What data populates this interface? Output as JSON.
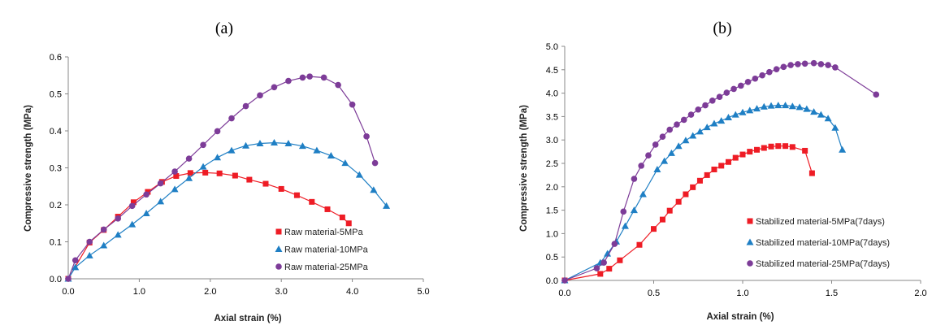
{
  "chart_data": [
    {
      "type": "line",
      "title": "(a)",
      "xlabel": "Axial strain (%)",
      "ylabel": "Compressive strength (MPa)",
      "xlim": [
        0,
        5
      ],
      "ylim": [
        0,
        0.6
      ],
      "xticks": [
        "0.0",
        "1.0",
        "2.0",
        "3.0",
        "4.0",
        "5.0"
      ],
      "yticks": [
        "0.0",
        "0.1",
        "0.2",
        "0.3",
        "0.4",
        "0.5",
        "0.6"
      ],
      "grid": false,
      "legend_position": "bottom-right",
      "series": [
        {
          "name": "Raw material-5MPa",
          "color": "#ee1c25",
          "marker": "square",
          "x": [
            0,
            0.3,
            0.5,
            0.7,
            0.92,
            1.12,
            1.32,
            1.52,
            1.72,
            1.93,
            2.13,
            2.35,
            2.55,
            2.78,
            3.0,
            3.22,
            3.43,
            3.65,
            3.86,
            3.95
          ],
          "y": [
            0,
            0.098,
            0.132,
            0.168,
            0.207,
            0.235,
            0.262,
            0.278,
            0.286,
            0.287,
            0.285,
            0.279,
            0.268,
            0.257,
            0.243,
            0.226,
            0.208,
            0.188,
            0.166,
            0.15
          ]
        },
        {
          "name": "Raw material-10MPa",
          "color": "#1f7fc4",
          "marker": "triangle",
          "x": [
            0,
            0.1,
            0.3,
            0.5,
            0.7,
            0.9,
            1.1,
            1.3,
            1.5,
            1.7,
            1.9,
            2.1,
            2.3,
            2.5,
            2.7,
            2.9,
            3.1,
            3.3,
            3.5,
            3.7,
            3.9,
            4.1,
            4.3,
            4.48
          ],
          "y": [
            0,
            0.031,
            0.063,
            0.09,
            0.119,
            0.147,
            0.177,
            0.209,
            0.242,
            0.272,
            0.303,
            0.328,
            0.347,
            0.36,
            0.366,
            0.368,
            0.366,
            0.359,
            0.347,
            0.333,
            0.313,
            0.281,
            0.24,
            0.197
          ]
        },
        {
          "name": "Raw material-25MPa",
          "color": "#7d3c98",
          "marker": "circle",
          "x": [
            0,
            0.1,
            0.3,
            0.5,
            0.7,
            0.9,
            1.1,
            1.3,
            1.5,
            1.7,
            1.9,
            2.1,
            2.3,
            2.5,
            2.7,
            2.9,
            3.1,
            3.3,
            3.4,
            3.6,
            3.8,
            4.0,
            4.2,
            4.32
          ],
          "y": [
            0,
            0.05,
            0.1,
            0.133,
            0.163,
            0.197,
            0.228,
            0.258,
            0.29,
            0.325,
            0.362,
            0.399,
            0.434,
            0.467,
            0.496,
            0.518,
            0.535,
            0.544,
            0.547,
            0.544,
            0.524,
            0.471,
            0.385,
            0.313
          ]
        }
      ]
    },
    {
      "type": "line",
      "title": "(b)",
      "xlabel": "Axial strain (%)",
      "ylabel": "Compressive strength (MPa)",
      "xlim": [
        0,
        2
      ],
      "ylim": [
        0,
        5
      ],
      "xticks": [
        "0.0",
        "0.5",
        "1.0",
        "1.5",
        "2.0"
      ],
      "yticks": [
        "0.0",
        "0.5",
        "1.0",
        "1.5",
        "2.0",
        "2.5",
        "3.0",
        "3.5",
        "4.0",
        "4.5",
        "5.0"
      ],
      "grid": false,
      "legend_position": "bottom-right",
      "series": [
        {
          "name": "Stabilized material-5MPa(7days)",
          "color": "#ee1c25",
          "marker": "square",
          "x": [
            0,
            0.2,
            0.25,
            0.31,
            0.42,
            0.5,
            0.55,
            0.59,
            0.64,
            0.68,
            0.72,
            0.76,
            0.8,
            0.84,
            0.88,
            0.92,
            0.96,
            1.0,
            1.04,
            1.08,
            1.12,
            1.16,
            1.2,
            1.24,
            1.28,
            1.35,
            1.39
          ],
          "y": [
            0,
            0.14,
            0.25,
            0.43,
            0.76,
            1.1,
            1.3,
            1.49,
            1.68,
            1.84,
            1.99,
            2.13,
            2.25,
            2.37,
            2.45,
            2.53,
            2.62,
            2.69,
            2.75,
            2.79,
            2.83,
            2.86,
            2.87,
            2.87,
            2.85,
            2.77,
            2.29
          ]
        },
        {
          "name": "Stabilized material-10MPa(7days)",
          "color": "#1f7fc4",
          "marker": "triangle",
          "x": [
            0,
            0.2,
            0.24,
            0.29,
            0.34,
            0.39,
            0.44,
            0.52,
            0.56,
            0.6,
            0.64,
            0.68,
            0.72,
            0.76,
            0.8,
            0.84,
            0.88,
            0.92,
            0.96,
            1.0,
            1.04,
            1.08,
            1.12,
            1.16,
            1.2,
            1.24,
            1.28,
            1.32,
            1.36,
            1.4,
            1.44,
            1.48,
            1.52,
            1.56
          ],
          "y": [
            0,
            0.38,
            0.57,
            0.83,
            1.16,
            1.5,
            1.84,
            2.37,
            2.55,
            2.72,
            2.87,
            2.99,
            3.09,
            3.18,
            3.27,
            3.35,
            3.41,
            3.48,
            3.54,
            3.59,
            3.63,
            3.67,
            3.71,
            3.73,
            3.74,
            3.74,
            3.72,
            3.7,
            3.66,
            3.6,
            3.54,
            3.46,
            3.26,
            2.79
          ]
        },
        {
          "name": "Stabilized material-25MPa(7days)",
          "color": "#7d3c98",
          "marker": "circle",
          "x": [
            0,
            0.18,
            0.22,
            0.28,
            0.33,
            0.39,
            0.43,
            0.47,
            0.51,
            0.55,
            0.59,
            0.63,
            0.67,
            0.71,
            0.75,
            0.79,
            0.83,
            0.87,
            0.91,
            0.95,
            0.99,
            1.03,
            1.07,
            1.11,
            1.15,
            1.19,
            1.23,
            1.27,
            1.31,
            1.35,
            1.4,
            1.44,
            1.48,
            1.52,
            1.75
          ],
          "y": [
            0,
            0.26,
            0.38,
            0.78,
            1.47,
            2.17,
            2.45,
            2.67,
            2.9,
            3.07,
            3.22,
            3.33,
            3.43,
            3.54,
            3.65,
            3.74,
            3.84,
            3.92,
            4.01,
            4.09,
            4.16,
            4.24,
            4.31,
            4.38,
            4.45,
            4.51,
            4.56,
            4.6,
            4.62,
            4.63,
            4.64,
            4.62,
            4.6,
            4.55,
            3.97
          ]
        }
      ]
    }
  ]
}
